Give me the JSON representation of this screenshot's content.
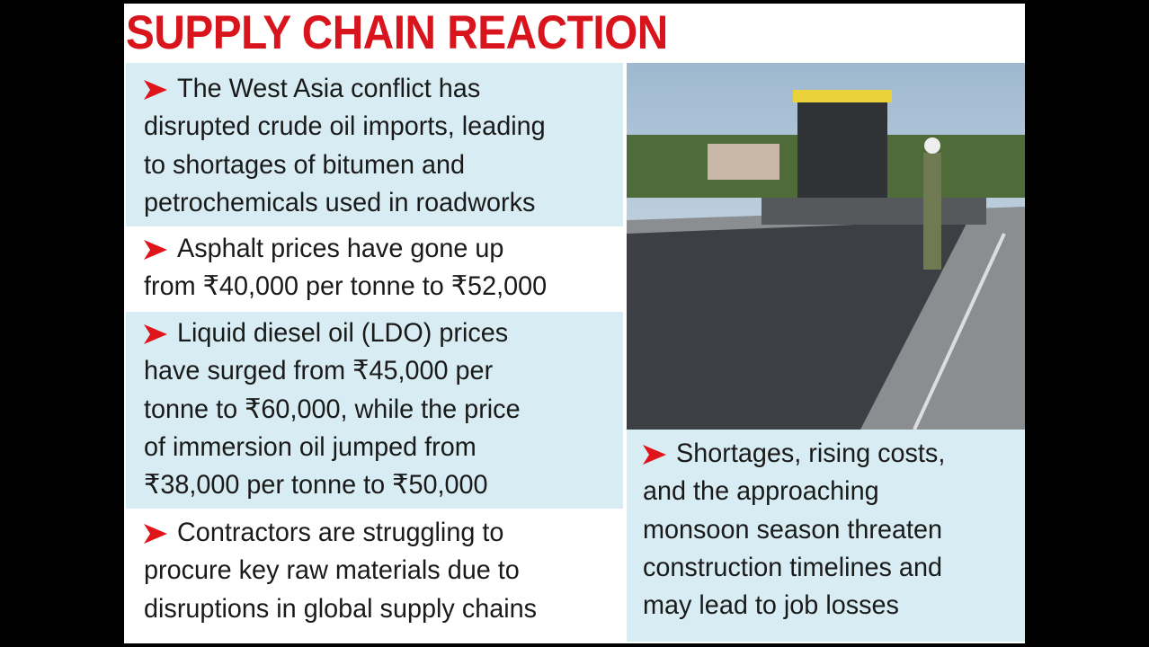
{
  "title": "SUPPLY CHAIN REACTION",
  "bullets": [
    [
      "The West Asia conflict has",
      "disrupted crude oil imports, leading",
      "to shortages of bitumen and",
      "petrochemicals used in roadworks"
    ],
    [
      "Asphalt prices have gone up",
      "from ₹40,000 per tonne to ₹52,000"
    ],
    [
      "Liquid diesel oil (LDO) prices",
      "have surged from ₹45,000 per",
      "tonne to ₹60,000, while the price",
      "of immersion oil jumped from",
      "₹38,000 per tonne to ₹50,000"
    ],
    [
      "Contractors are struggling to",
      "procure key raw materials due to",
      "disruptions in global supply chains"
    ],
    [
      "Shortages, rising costs,",
      "and the approaching",
      "monsoon season threaten",
      "construction timelines and",
      "may lead to job losses"
    ]
  ]
}
